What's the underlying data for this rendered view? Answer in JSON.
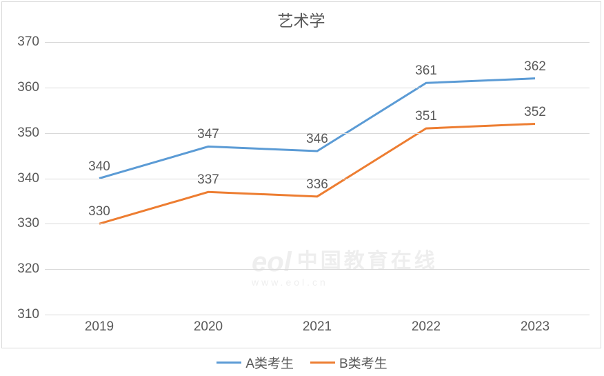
{
  "chart": {
    "type": "line",
    "title": "艺术学",
    "title_fontsize": 23,
    "title_color": "#595959",
    "background_color": "#ffffff",
    "border_color": "#d9d9d9",
    "grid_color": "#d9d9d9",
    "axis_label_color": "#595959",
    "axis_label_fontsize": 19,
    "data_label_color": "#595959",
    "data_label_fontsize": 19,
    "x_categories": [
      "2019",
      "2020",
      "2021",
      "2022",
      "2023"
    ],
    "ylim": [
      310,
      370
    ],
    "ytick_step": 10,
    "yticks": [
      310,
      320,
      330,
      340,
      350,
      360,
      370
    ],
    "line_width": 3,
    "series": [
      {
        "name": "A类考生",
        "color": "#5b9bd5",
        "values": [
          340,
          347,
          346,
          361,
          362
        ]
      },
      {
        "name": "B类考生",
        "color": "#ed7d31",
        "values": [
          330,
          337,
          336,
          351,
          352
        ]
      }
    ],
    "legend_position": "bottom"
  },
  "watermark": {
    "brand_glyph": "eol",
    "text": "中国教育在线",
    "subtext": "www.eol.cn",
    "color": "#eeeeee"
  }
}
